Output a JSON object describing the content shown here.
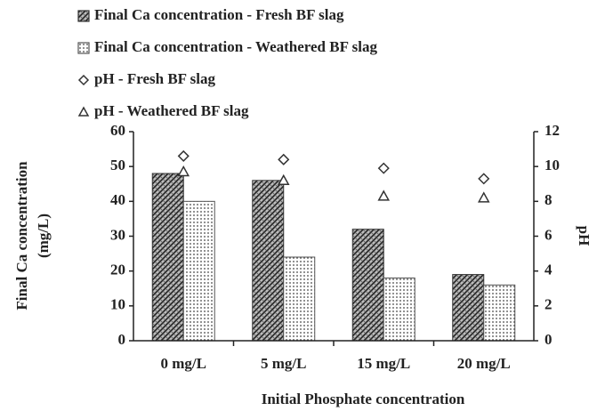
{
  "chart_data": {
    "type": "bar",
    "categories": [
      "0 mg/L",
      "5 mg/L",
      "15 mg/L",
      "20 mg/L"
    ],
    "xlabel": "Initial Phosphate concentration",
    "ylabel": [
      "Final Ca concentration",
      "(mg/L)"
    ],
    "y2label": "pH",
    "ylim": [
      0,
      60
    ],
    "yticks": [
      0,
      10,
      20,
      30,
      40,
      50,
      60
    ],
    "y2lim": [
      0,
      12
    ],
    "y2ticks": [
      0,
      2,
      4,
      6,
      8,
      10,
      12
    ],
    "series": [
      {
        "name": "Final Ca concentration - Fresh BF slag",
        "kind": "bar",
        "pattern": "hatch",
        "color": "#333333",
        "values": [
          48,
          46,
          32,
          19
        ]
      },
      {
        "name": "Final Ca concentration - Weathered BF slag",
        "kind": "bar",
        "pattern": "dots",
        "color": "#555555",
        "values": [
          40,
          24,
          18,
          16
        ]
      },
      {
        "name": "pH - Fresh BF slag",
        "kind": "marker",
        "marker": "diamond",
        "axis": "y2",
        "color": "#333333",
        "values": [
          10.6,
          10.4,
          9.9,
          9.3
        ]
      },
      {
        "name": "pH - Weathered BF slag",
        "kind": "marker",
        "marker": "triangle",
        "axis": "y2",
        "color": "#333333",
        "values": [
          9.7,
          9.2,
          8.3,
          8.2
        ]
      }
    ]
  }
}
